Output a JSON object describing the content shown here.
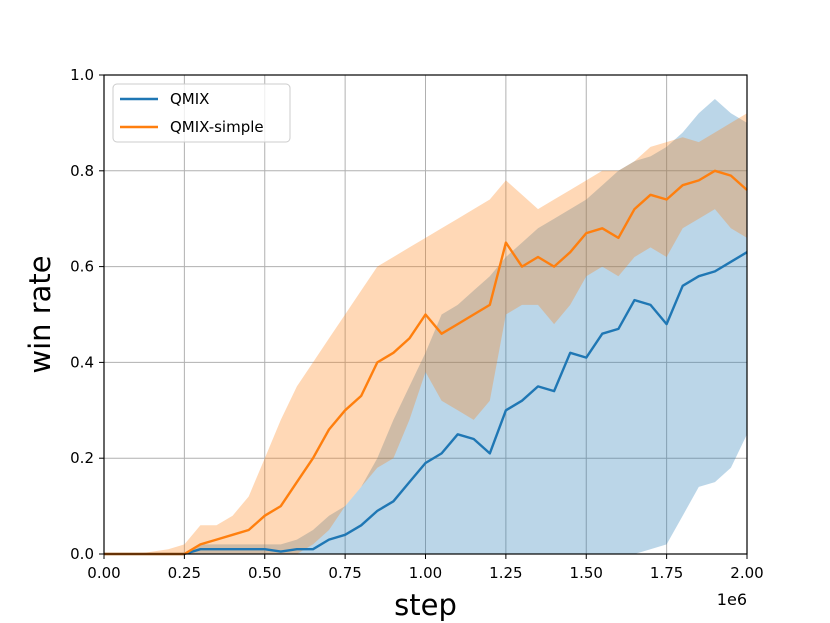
{
  "chart_data": {
    "type": "line",
    "xlabel": "step",
    "ylabel": "win rate",
    "x_offset_label": "1e6",
    "xlim": [
      0,
      2.0
    ],
    "ylim": [
      0,
      1.0
    ],
    "xticks": [
      "0.00",
      "0.25",
      "0.50",
      "0.75",
      "1.00",
      "1.25",
      "1.50",
      "1.75",
      "2.00"
    ],
    "yticks": [
      "0.0",
      "0.2",
      "0.4",
      "0.6",
      "0.8",
      "1.0"
    ],
    "grid": true,
    "legend_position": "top-left",
    "series": [
      {
        "name": "QMIX",
        "color": "#1f77b4",
        "x": [
          0.0,
          0.1,
          0.2,
          0.25,
          0.3,
          0.35,
          0.4,
          0.45,
          0.5,
          0.55,
          0.6,
          0.65,
          0.7,
          0.75,
          0.8,
          0.85,
          0.9,
          0.95,
          1.0,
          1.05,
          1.1,
          1.15,
          1.2,
          1.25,
          1.3,
          1.35,
          1.4,
          1.45,
          1.5,
          1.55,
          1.6,
          1.65,
          1.7,
          1.75,
          1.8,
          1.85,
          1.9,
          1.95,
          2.0
        ],
        "y": [
          0.0,
          0.0,
          0.0,
          0.0,
          0.01,
          0.01,
          0.01,
          0.01,
          0.01,
          0.005,
          0.01,
          0.01,
          0.03,
          0.04,
          0.06,
          0.09,
          0.11,
          0.15,
          0.19,
          0.21,
          0.25,
          0.24,
          0.21,
          0.3,
          0.32,
          0.35,
          0.34,
          0.42,
          0.41,
          0.46,
          0.47,
          0.53,
          0.52,
          0.48,
          0.56,
          0.58,
          0.59,
          0.61,
          0.63
        ],
        "band_upper": [
          0.0,
          0.0,
          0.0,
          0.0,
          0.02,
          0.02,
          0.02,
          0.02,
          0.02,
          0.02,
          0.03,
          0.05,
          0.08,
          0.1,
          0.14,
          0.2,
          0.28,
          0.35,
          0.42,
          0.5,
          0.52,
          0.55,
          0.58,
          0.62,
          0.65,
          0.68,
          0.7,
          0.72,
          0.74,
          0.77,
          0.8,
          0.82,
          0.83,
          0.85,
          0.88,
          0.92,
          0.95,
          0.92,
          0.9
        ],
        "band_lower": [
          0.0,
          0.0,
          0.0,
          0.0,
          0.0,
          0.0,
          0.0,
          0.0,
          0.0,
          0.0,
          0.0,
          0.0,
          0.0,
          0.0,
          0.0,
          0.0,
          0.0,
          0.0,
          0.0,
          0.0,
          0.0,
          0.0,
          0.0,
          0.0,
          0.0,
          0.0,
          0.0,
          0.0,
          0.0,
          0.0,
          0.0,
          0.0,
          0.01,
          0.02,
          0.08,
          0.14,
          0.15,
          0.18,
          0.25
        ]
      },
      {
        "name": "QMIX-simple",
        "color": "#ff7f0e",
        "x": [
          0.0,
          0.1,
          0.2,
          0.25,
          0.3,
          0.35,
          0.4,
          0.45,
          0.5,
          0.55,
          0.6,
          0.65,
          0.7,
          0.75,
          0.8,
          0.85,
          0.9,
          0.95,
          1.0,
          1.05,
          1.1,
          1.15,
          1.2,
          1.25,
          1.3,
          1.35,
          1.4,
          1.45,
          1.5,
          1.55,
          1.6,
          1.65,
          1.7,
          1.75,
          1.8,
          1.85,
          1.9,
          1.95,
          2.0
        ],
        "y": [
          0.0,
          0.0,
          0.0,
          0.0,
          0.02,
          0.03,
          0.04,
          0.05,
          0.08,
          0.1,
          0.15,
          0.2,
          0.26,
          0.3,
          0.33,
          0.4,
          0.42,
          0.45,
          0.5,
          0.46,
          0.48,
          0.5,
          0.52,
          0.65,
          0.6,
          0.62,
          0.6,
          0.63,
          0.67,
          0.68,
          0.66,
          0.72,
          0.75,
          0.74,
          0.77,
          0.78,
          0.8,
          0.79,
          0.76
        ],
        "band_upper": [
          0.0,
          0.0,
          0.01,
          0.02,
          0.06,
          0.06,
          0.08,
          0.12,
          0.2,
          0.28,
          0.35,
          0.4,
          0.45,
          0.5,
          0.55,
          0.6,
          0.62,
          0.64,
          0.66,
          0.68,
          0.7,
          0.72,
          0.74,
          0.78,
          0.75,
          0.72,
          0.74,
          0.76,
          0.78,
          0.8,
          0.8,
          0.82,
          0.85,
          0.86,
          0.87,
          0.86,
          0.88,
          0.9,
          0.92
        ],
        "band_lower": [
          0.0,
          0.0,
          0.0,
          0.0,
          0.0,
          0.0,
          0.0,
          0.0,
          0.0,
          0.0,
          0.0,
          0.02,
          0.05,
          0.1,
          0.14,
          0.18,
          0.2,
          0.28,
          0.38,
          0.32,
          0.3,
          0.28,
          0.32,
          0.5,
          0.52,
          0.52,
          0.48,
          0.52,
          0.58,
          0.6,
          0.58,
          0.62,
          0.64,
          0.62,
          0.68,
          0.7,
          0.72,
          0.68,
          0.66
        ]
      }
    ]
  }
}
